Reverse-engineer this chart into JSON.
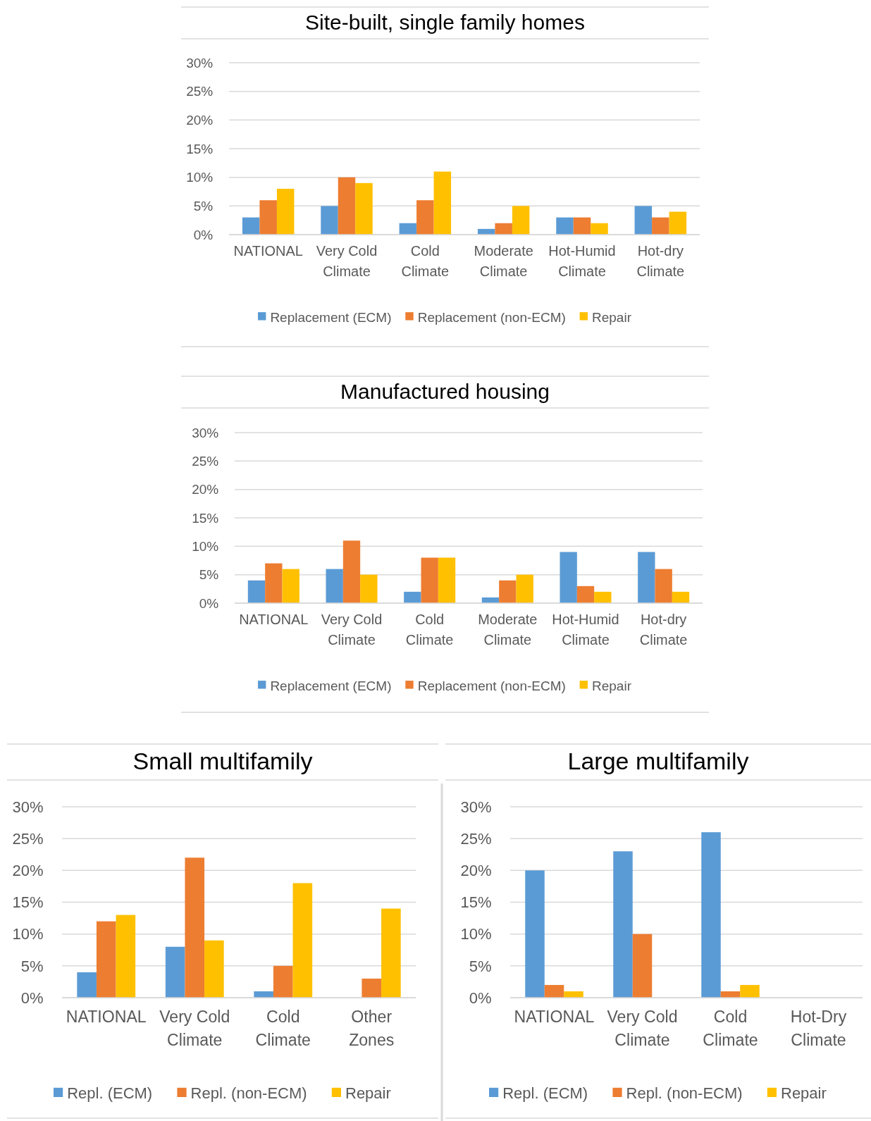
{
  "chart_data": [
    {
      "type": "bar",
      "title": "Site-built, single family homes",
      "categories": [
        "NATIONAL",
        "Very Cold Climate",
        "Cold Climate",
        "Moderate Climate",
        "Hot-Humid Climate",
        "Hot-dry Climate"
      ],
      "series": [
        {
          "name": "Replacement (ECM)",
          "color": "#5b9bd5",
          "values": [
            3,
            5,
            2,
            1,
            3,
            5
          ]
        },
        {
          "name": "Replacement (non-ECM)",
          "color": "#ed7d31",
          "values": [
            6,
            10,
            6,
            2,
            3,
            3
          ]
        },
        {
          "name": "Repair",
          "color": "#ffc000",
          "values": [
            8,
            9,
            11,
            5,
            2,
            4
          ]
        }
      ],
      "ylim": [
        0,
        30
      ],
      "yticks": [
        {
          "value": 0,
          "label": "0%"
        },
        {
          "value": 5,
          "label": "5%"
        },
        {
          "value": 10,
          "label": "10%"
        },
        {
          "value": 15,
          "label": "15%"
        },
        {
          "value": 20,
          "label": "20%"
        },
        {
          "value": 25,
          "label": "25%"
        },
        {
          "value": 30,
          "label": "30%"
        }
      ],
      "grid": "y",
      "legend": "bottom"
    },
    {
      "type": "bar",
      "title": "Manufactured housing",
      "categories": [
        "NATIONAL",
        "Very Cold Climate",
        "Cold Climate",
        "Moderate Climate",
        "Hot-Humid Climate",
        "Hot-dry Climate"
      ],
      "series": [
        {
          "name": "Replacement (ECM)",
          "color": "#5b9bd5",
          "values": [
            4,
            6,
            2,
            1,
            9,
            9
          ]
        },
        {
          "name": "Replacement (non-ECM)",
          "color": "#ed7d31",
          "values": [
            7,
            11,
            8,
            4,
            3,
            6
          ]
        },
        {
          "name": "Repair",
          "color": "#ffc000",
          "values": [
            6,
            5,
            8,
            5,
            2,
            2
          ]
        }
      ],
      "ylim": [
        0,
        30
      ],
      "yticks": [
        {
          "value": 0,
          "label": "0%"
        },
        {
          "value": 5,
          "label": "5%"
        },
        {
          "value": 10,
          "label": "10%"
        },
        {
          "value": 15,
          "label": "15%"
        },
        {
          "value": 20,
          "label": "20%"
        },
        {
          "value": 25,
          "label": "25%"
        },
        {
          "value": 30,
          "label": "30%"
        }
      ],
      "grid": "y",
      "legend": "bottom"
    },
    {
      "type": "bar",
      "title": "Small multifamily",
      "categories": [
        "NATIONAL",
        "Very Cold Climate",
        "Cold Climate",
        "Other Zones"
      ],
      "series": [
        {
          "name": "Repl. (ECM)",
          "color": "#5b9bd5",
          "values": [
            4,
            8,
            1,
            0
          ]
        },
        {
          "name": "Repl. (non-ECM)",
          "color": "#ed7d31",
          "values": [
            12,
            22,
            5,
            3
          ]
        },
        {
          "name": "Repair",
          "color": "#ffc000",
          "values": [
            13,
            9,
            18,
            14
          ]
        }
      ],
      "ylim": [
        0,
        30
      ],
      "yticks": [
        {
          "value": 0,
          "label": "0%"
        },
        {
          "value": 5,
          "label": "5%"
        },
        {
          "value": 10,
          "label": "10%"
        },
        {
          "value": 15,
          "label": "15%"
        },
        {
          "value": 20,
          "label": "20%"
        },
        {
          "value": 25,
          "label": "25%"
        },
        {
          "value": 30,
          "label": "30%"
        }
      ],
      "grid": "y",
      "legend": "bottom"
    },
    {
      "type": "bar",
      "title": "Large multifamily",
      "categories": [
        "NATIONAL",
        "Very Cold Climate",
        "Cold Climate",
        "Hot-Dry Climate"
      ],
      "series": [
        {
          "name": "Repl. (ECM)",
          "color": "#5b9bd5",
          "values": [
            20,
            23,
            26,
            0
          ]
        },
        {
          "name": "Repl. (non-ECM)",
          "color": "#ed7d31",
          "values": [
            2,
            10,
            1,
            0
          ]
        },
        {
          "name": "Repair",
          "color": "#ffc000",
          "values": [
            1,
            0,
            2,
            0
          ]
        }
      ],
      "ylim": [
        0,
        30
      ],
      "yticks": [
        {
          "value": 0,
          "label": "0%"
        },
        {
          "value": 5,
          "label": "5%"
        },
        {
          "value": 10,
          "label": "10%"
        },
        {
          "value": 15,
          "label": "15%"
        },
        {
          "value": 20,
          "label": "20%"
        },
        {
          "value": 25,
          "label": "25%"
        },
        {
          "value": 30,
          "label": "30%"
        }
      ],
      "grid": "y",
      "legend": "bottom"
    }
  ]
}
